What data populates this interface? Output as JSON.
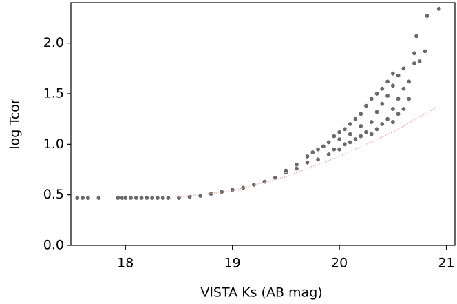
{
  "chart_data": {
    "type": "scatter",
    "x_label": "VISTA Ks (AB mag)",
    "y_label": "log Tcor",
    "xlim": [
      17.49,
      21.08
    ],
    "ylim": [
      0,
      2.4
    ],
    "xticks": [
      18,
      19,
      20,
      21
    ],
    "yticks": [
      {
        "value": 0,
        "label": "0.0"
      },
      {
        "value": 0.5,
        "label": "0.5"
      },
      {
        "value": 1,
        "label": "1.0"
      },
      {
        "value": 1.5,
        "label": "1.5"
      },
      {
        "value": 2,
        "label": "2.0"
      }
    ],
    "series": [
      {
        "color": "#505050",
        "kind": "points",
        "x": [
          17.55,
          17.6,
          17.65,
          17.75,
          17.93,
          17.97,
          18.0,
          18.05,
          18.1,
          18.15,
          18.2,
          18.25,
          18.3,
          18.35,
          18.4,
          18.5,
          18.6,
          18.7,
          18.8,
          18.9,
          19.0,
          19.1,
          19.2,
          19.3,
          19.4,
          19.5,
          19.5,
          19.6,
          19.6,
          19.7,
          19.7,
          19.75,
          19.8,
          19.8,
          19.85,
          19.9,
          19.9,
          19.95,
          19.95,
          20.0,
          20.0,
          20.0,
          20.05,
          20.05,
          20.1,
          20.1,
          20.1,
          20.15,
          20.15,
          20.2,
          20.2,
          20.2,
          20.25,
          20.25,
          20.3,
          20.3,
          20.3,
          20.35,
          20.35,
          20.35,
          20.4,
          20.4,
          20.4,
          20.45,
          20.45,
          20.45,
          20.5,
          20.5,
          20.5,
          20.5,
          20.55,
          20.55,
          20.55,
          20.6,
          20.6,
          20.6,
          20.65,
          20.65,
          20.7,
          20.7,
          20.72,
          20.75,
          20.8,
          20.82,
          20.93
        ],
        "y": [
          0.47,
          0.47,
          0.47,
          0.47,
          0.47,
          0.47,
          0.47,
          0.47,
          0.47,
          0.47,
          0.47,
          0.47,
          0.47,
          0.47,
          0.47,
          0.47,
          0.48,
          0.49,
          0.51,
          0.53,
          0.55,
          0.57,
          0.6,
          0.63,
          0.67,
          0.72,
          0.74,
          0.76,
          0.8,
          0.82,
          0.88,
          0.92,
          0.85,
          0.95,
          0.98,
          0.9,
          1.02,
          1.08,
          0.95,
          0.95,
          1.05,
          1.12,
          1.0,
          1.15,
          1.02,
          1.1,
          1.2,
          1.05,
          1.25,
          1.08,
          1.18,
          1.3,
          1.12,
          1.38,
          1.1,
          1.22,
          1.45,
          1.15,
          1.32,
          1.5,
          1.2,
          1.4,
          1.55,
          1.25,
          1.48,
          1.62,
          1.22,
          1.35,
          1.58,
          1.7,
          1.3,
          1.45,
          1.68,
          1.35,
          1.55,
          1.75,
          1.45,
          1.62,
          1.8,
          1.9,
          2.07,
          1.82,
          1.92,
          2.27,
          2.34
        ]
      },
      {
        "color": "#e8a0a0",
        "kind": "line",
        "x": [
          18.5,
          19.0,
          19.5,
          20.0,
          20.5,
          20.9
        ],
        "y": [
          0.48,
          0.54,
          0.68,
          0.88,
          1.12,
          1.36
        ]
      }
    ]
  }
}
